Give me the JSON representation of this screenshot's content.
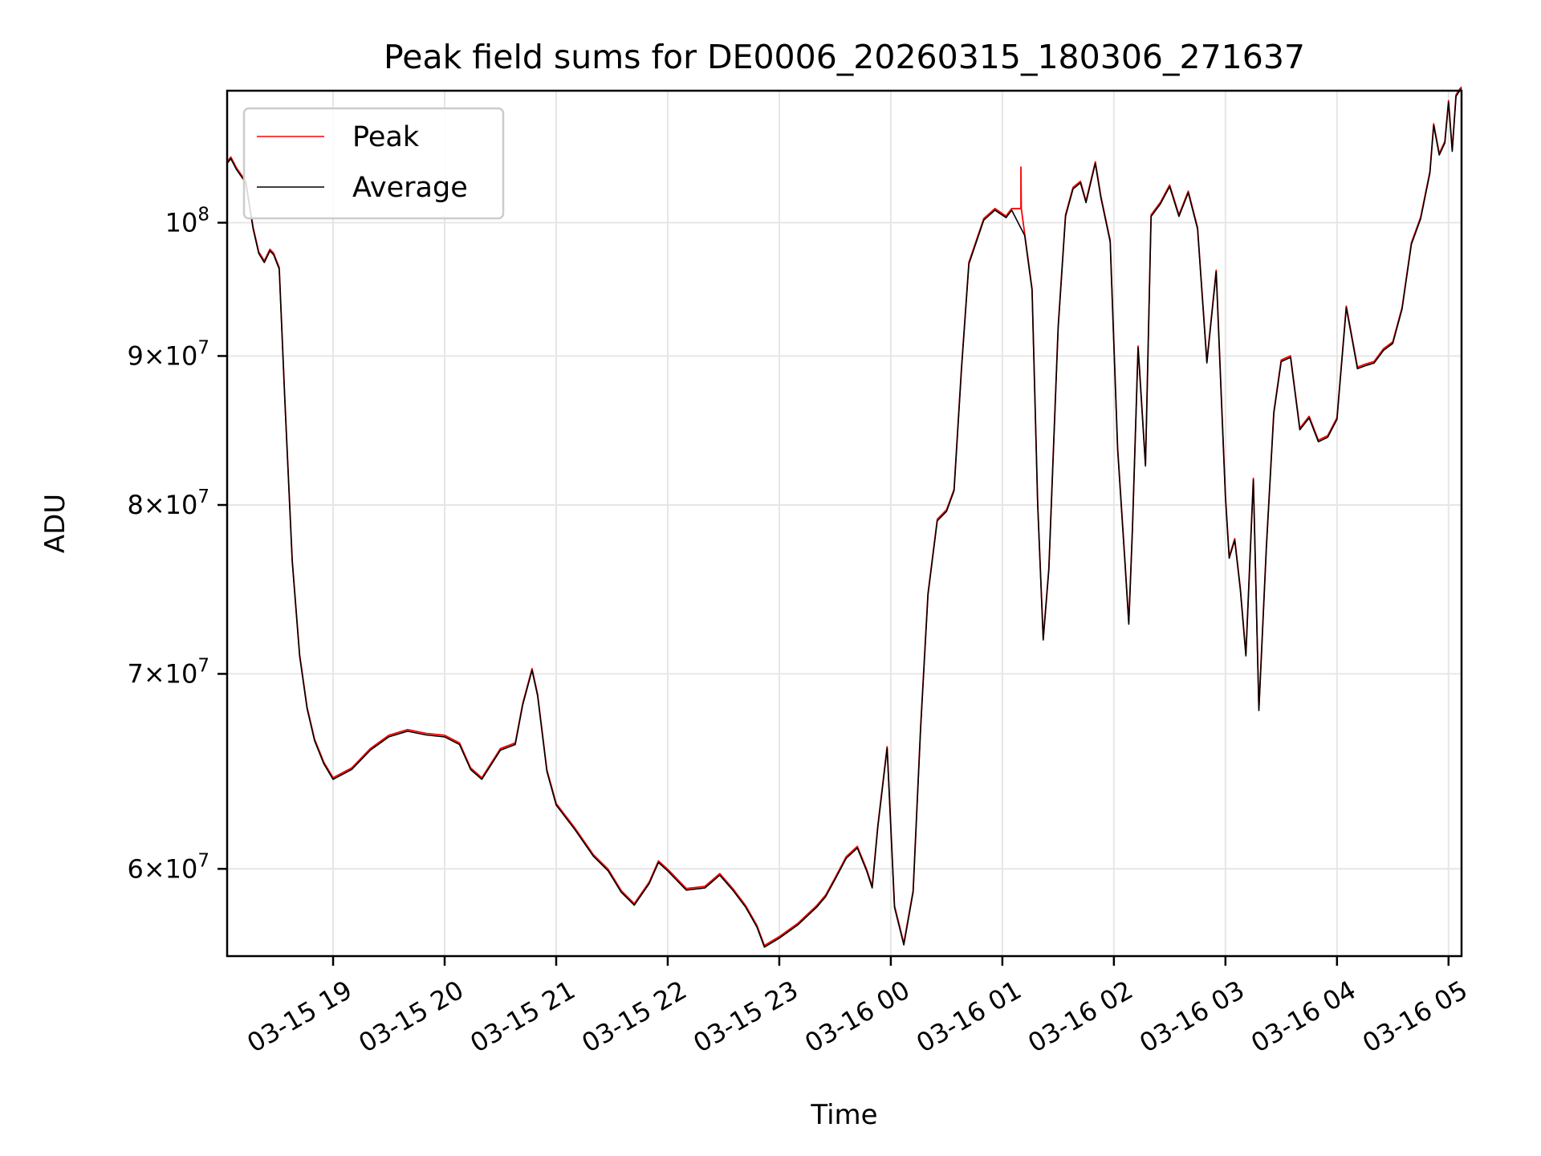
{
  "chart_data": {
    "type": "line",
    "title": "Peak field sums for DE0006_20260315_180306_271637",
    "xlabel": "Time",
    "ylabel": "ADU",
    "y_scale": "log",
    "ylim": [
      56000000,
      111000000
    ],
    "xlim": [
      "2026-03-15 18:03",
      "2026-03-16 05:07"
    ],
    "grid": true,
    "legend_position": "upper-left",
    "x_ticks": [
      {
        "label": "03-15 19",
        "value": "2026-03-15 19:00"
      },
      {
        "label": "03-15 20",
        "value": "2026-03-15 20:00"
      },
      {
        "label": "03-15 21",
        "value": "2026-03-15 21:00"
      },
      {
        "label": "03-15 22",
        "value": "2026-03-15 22:00"
      },
      {
        "label": "03-15 23",
        "value": "2026-03-15 23:00"
      },
      {
        "label": "03-16 00",
        "value": "2026-03-16 00:00"
      },
      {
        "label": "03-16 01",
        "value": "2026-03-16 01:00"
      },
      {
        "label": "03-16 02",
        "value": "2026-03-16 02:00"
      },
      {
        "label": "03-16 03",
        "value": "2026-03-16 03:00"
      },
      {
        "label": "03-16 04",
        "value": "2026-03-16 04:00"
      },
      {
        "label": "03-16 05",
        "value": "2026-03-16 05:00"
      }
    ],
    "y_ticks": [
      {
        "mantissa": "",
        "exponent": "8",
        "value": 100000000
      },
      {
        "mantissa": "9",
        "exponent": "7",
        "value": 90000000
      },
      {
        "mantissa": "8",
        "exponent": "7",
        "value": 80000000
      },
      {
        "mantissa": "7",
        "exponent": "7",
        "value": 70000000
      },
      {
        "mantissa": "6",
        "exponent": "7",
        "value": 60000000
      }
    ],
    "series": [
      {
        "name": "Peak",
        "color": "#ff0000",
        "x": [
          "2026-03-16 01:10"
        ],
        "y": [
          104500000
        ]
      },
      {
        "name": "Average",
        "color": "#000000",
        "x": [
          "2026-03-15 18:03",
          "2026-03-15 18:05",
          "2026-03-15 18:08",
          "2026-03-15 18:13",
          "2026-03-15 18:17",
          "2026-03-15 18:20",
          "2026-03-15 18:23",
          "2026-03-15 18:26",
          "2026-03-15 18:28",
          "2026-03-15 18:31",
          "2026-03-15 18:34",
          "2026-03-15 18:38",
          "2026-03-15 18:42",
          "2026-03-15 18:46",
          "2026-03-15 18:50",
          "2026-03-15 18:55",
          "2026-03-15 19:00",
          "2026-03-15 19:10",
          "2026-03-15 19:20",
          "2026-03-15 19:30",
          "2026-03-15 19:40",
          "2026-03-15 19:50",
          "2026-03-15 20:00",
          "2026-03-15 20:08",
          "2026-03-15 20:14",
          "2026-03-15 20:20",
          "2026-03-15 20:30",
          "2026-03-15 20:38",
          "2026-03-15 20:42",
          "2026-03-15 20:47",
          "2026-03-15 20:50",
          "2026-03-15 20:55",
          "2026-03-15 21:00",
          "2026-03-15 21:10",
          "2026-03-15 21:20",
          "2026-03-15 21:28",
          "2026-03-15 21:35",
          "2026-03-15 21:42",
          "2026-03-15 21:50",
          "2026-03-15 21:55",
          "2026-03-15 22:00",
          "2026-03-15 22:10",
          "2026-03-15 22:20",
          "2026-03-15 22:28",
          "2026-03-15 22:35",
          "2026-03-15 22:42",
          "2026-03-15 22:48",
          "2026-03-15 22:52",
          "2026-03-15 23:00",
          "2026-03-15 23:10",
          "2026-03-15 23:20",
          "2026-03-15 23:25",
          "2026-03-15 23:30",
          "2026-03-15 23:36",
          "2026-03-15 23:42",
          "2026-03-15 23:47",
          "2026-03-15 23:50",
          "2026-03-15 23:53",
          "2026-03-15 23:58",
          "2026-03-16 00:02",
          "2026-03-16 00:07",
          "2026-03-16 00:12",
          "2026-03-16 00:16",
          "2026-03-16 00:20",
          "2026-03-16 00:25",
          "2026-03-16 00:30",
          "2026-03-16 00:34",
          "2026-03-16 00:38",
          "2026-03-16 00:42",
          "2026-03-16 00:50",
          "2026-03-16 00:56",
          "2026-03-16 01:02",
          "2026-03-16 01:05",
          "2026-03-16 01:12",
          "2026-03-16 01:16",
          "2026-03-16 01:19",
          "2026-03-16 01:22",
          "2026-03-16 01:25",
          "2026-03-16 01:30",
          "2026-03-16 01:34",
          "2026-03-16 01:38",
          "2026-03-16 01:42",
          "2026-03-16 01:45",
          "2026-03-16 01:50",
          "2026-03-16 01:53",
          "2026-03-16 01:58",
          "2026-03-16 02:02",
          "2026-03-16 02:06",
          "2026-03-16 02:08",
          "2026-03-16 02:10",
          "2026-03-16 02:13",
          "2026-03-16 02:17",
          "2026-03-16 02:20",
          "2026-03-16 02:25",
          "2026-03-16 02:30",
          "2026-03-16 02:35",
          "2026-03-16 02:40",
          "2026-03-16 02:45",
          "2026-03-16 02:50",
          "2026-03-16 02:55",
          "2026-03-16 02:58",
          "2026-03-16 03:00",
          "2026-03-16 03:02",
          "2026-03-16 03:05",
          "2026-03-16 03:08",
          "2026-03-16 03:11",
          "2026-03-16 03:15",
          "2026-03-16 03:18",
          "2026-03-16 03:22",
          "2026-03-16 03:26",
          "2026-03-16 03:30",
          "2026-03-16 03:35",
          "2026-03-16 03:40",
          "2026-03-16 03:45",
          "2026-03-16 03:50",
          "2026-03-16 03:55",
          "2026-03-16 04:00",
          "2026-03-16 04:05",
          "2026-03-16 04:08",
          "2026-03-16 04:11",
          "2026-03-16 04:15",
          "2026-03-16 04:20",
          "2026-03-16 04:25",
          "2026-03-16 04:30",
          "2026-03-16 04:35",
          "2026-03-16 04:40",
          "2026-03-16 04:45",
          "2026-03-16 04:50",
          "2026-03-16 04:52",
          "2026-03-16 04:55",
          "2026-03-16 04:58",
          "2026-03-16 05:00",
          "2026-03-16 05:02",
          "2026-03-16 05:04",
          "2026-03-16 05:06",
          "2026-03-16 05:07"
        ],
        "y": [
          104800000,
          105200000,
          104300000,
          103200000,
          99500000,
          97600000,
          96900000,
          97800000,
          97500000,
          96400000,
          87000000,
          76500000,
          71000000,
          68100000,
          66400000,
          65200000,
          64400000,
          64900000,
          65900000,
          66600000,
          66900000,
          66700000,
          66600000,
          66200000,
          64900000,
          64400000,
          65900000,
          66200000,
          68300000,
          70200000,
          68800000,
          64800000,
          63100000,
          61900000,
          60600000,
          59900000,
          58900000,
          58300000,
          59300000,
          60300000,
          59900000,
          59000000,
          59100000,
          59700000,
          59000000,
          58200000,
          57300000,
          56400000,
          56800000,
          57400000,
          58200000,
          58700000,
          59500000,
          60500000,
          61000000,
          59900000,
          59100000,
          62000000,
          66000000,
          58200000,
          56500000,
          58900000,
          67000000,
          74500000,
          79000000,
          79600000,
          80900000,
          89000000,
          96800000,
          100200000,
          101000000,
          100400000,
          101000000,
          99000000,
          94800000,
          80000000,
          71900000,
          76000000,
          92000000,
          100500000,
          102700000,
          103200000,
          101600000,
          104800000,
          102000000,
          98500000,
          83600000,
          76300000,
          72800000,
          78500000,
          90600000,
          82500000,
          100500000,
          101500000,
          102900000,
          100500000,
          102400000,
          99500000,
          89500000,
          96200000,
          86400000,
          80500000,
          76700000,
          77800000,
          74800000,
          71000000,
          81600000,
          68000000,
          77300000,
          86000000,
          89600000,
          89900000,
          84900000,
          85700000,
          84100000,
          84400000,
          85600000,
          93500000,
          91300000,
          89100000,
          89300000,
          89500000,
          90400000,
          90900000,
          93400000,
          98300000,
          100300000,
          104000000,
          108000000,
          105500000,
          106500000,
          110000000,
          105800000,
          110500000,
          111000000,
          111200000
        ]
      }
    ]
  }
}
